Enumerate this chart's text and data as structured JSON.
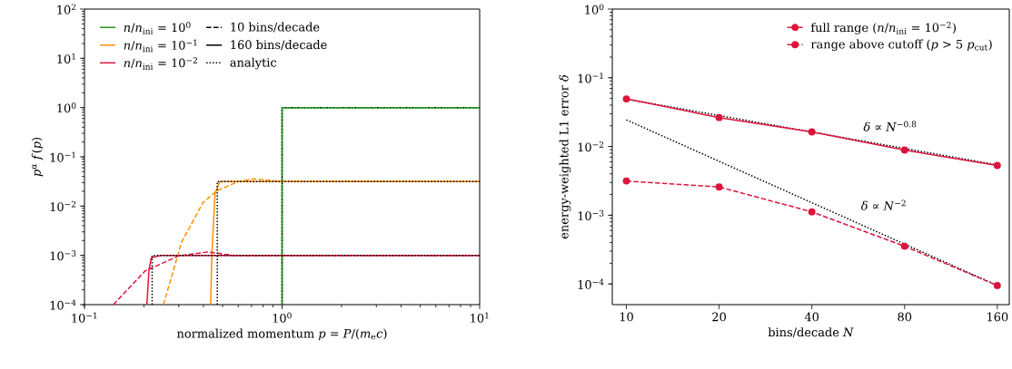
{
  "chart_data": [
    {
      "type": "line",
      "xlabel": "normalized momentum *p* = *P*/(*m*$_{e}$*c*)",
      "ylabel": "*p*$^{α}$ *f*(*p*)",
      "log": "xy",
      "legend": "top left",
      "xlim": [
        0.1,
        10
      ],
      "ylim": [
        0.0001,
        100
      ],
      "xticks": [
        {
          "value": 0.1,
          "label": "10$^{−1}$"
        },
        {
          "value": 1,
          "label": "10$^{0}$"
        },
        {
          "value": 10,
          "label": "10$^{1}$"
        }
      ],
      "yticks": [
        {
          "value": 0.0001,
          "label": "10$^{−4}$"
        },
        {
          "value": 0.001,
          "label": "10$^{−3}$"
        },
        {
          "value": 0.01,
          "label": "10$^{−2}$"
        },
        {
          "value": 0.1,
          "label": "10$^{−1}$"
        },
        {
          "value": 1,
          "label": "10$^{0}$"
        },
        {
          "value": 10,
          "label": "10$^{1}$"
        },
        {
          "value": 100,
          "label": "10$^{2}$"
        }
      ],
      "series": [
        {
          "name": "*n*/*n*$_{ini}$ = 10$^{0}$",
          "color": "#1f9a1f",
          "line_style": "solid",
          "x": [
            1,
            1,
            10
          ],
          "values": [
            0.0001,
            1,
            1
          ]
        },
        {
          "name": "*n*/*n*$_{ini}$ = 10$^{−1}$",
          "color": "#ff9000",
          "line_style": "solid",
          "x": [
            0.435,
            0.441,
            0.458,
            0.484,
            10
          ],
          "values": [
            0.0001,
            0.001,
            0.0178,
            0.0316,
            0.0316
          ]
        },
        {
          "name": "*n*/*n*$_{ini}$ = 10$^{−2}$",
          "color": "#dc143c",
          "line_style": "solid",
          "x": [
            0.207,
            0.212,
            0.218,
            0.243,
            10
          ],
          "values": [
            0.0001,
            0.0005,
            0.0009,
            0.001,
            0.001
          ]
        },
        {
          "name": "10 bins/decade",
          "color": "#000000",
          "line_style": "dashed"
        },
        {
          "name": "160 bins/decade",
          "color": "#000000",
          "line_style": "solid"
        },
        {
          "name": "analytic",
          "color": "#000000",
          "line_style": "dotted",
          "x": [
            1,
            1,
            10
          ],
          "values": [
            0.0001,
            1,
            1
          ]
        },
        {
          "color": "#1f9a1f",
          "line_style": "dashed",
          "x": [
            1,
            1,
            10
          ],
          "values": [
            0.0001,
            1,
            1
          ]
        },
        {
          "color": "#ff9000",
          "line_style": "dashed",
          "x": [
            0.251,
            0.31,
            0.397,
            0.466,
            0.607,
            0.724,
            0.96,
            10
          ],
          "values": [
            0.0001,
            0.00185,
            0.0116,
            0.0204,
            0.032,
            0.0358,
            0.032,
            0.0316
          ]
        },
        {
          "color": "#dc143c",
          "line_style": "dashed",
          "x": [
            0.14,
            0.203,
            0.3,
            0.419,
            0.566,
            10
          ],
          "values": [
            0.0001,
            0.000485,
            0.00098,
            0.00117,
            0.001,
            0.001
          ]
        },
        {
          "color": "#000000",
          "line_style": "dotted",
          "x": [
            0.47,
            0.47,
            10
          ],
          "values": [
            0.0001,
            0.0316,
            0.0316
          ]
        },
        {
          "color": "#000000",
          "line_style": "dotted",
          "x": [
            0.22,
            0.22,
            10
          ],
          "values": [
            0.0001,
            0.001,
            0.001
          ]
        }
      ]
    },
    {
      "type": "line",
      "xlabel": "bins/decade *N*",
      "ylabel": "energy-weighted L1 error *δ*",
      "log": "xy",
      "legend": "top right",
      "xlim": [
        9,
        175
      ],
      "ylim": [
        5e-05,
        1
      ],
      "xticks": [
        10,
        20,
        40,
        80,
        160
      ],
      "yticks": [
        {
          "value": 0.0001,
          "label": "10$^{−4}$"
        },
        {
          "value": 0.001,
          "label": "10$^{−3}$"
        },
        {
          "value": 0.01,
          "label": "10$^{−2}$"
        },
        {
          "value": 0.1,
          "label": "10$^{−1}$"
        },
        {
          "value": 1,
          "label": "10$^{0}$"
        }
      ],
      "series": [
        {
          "color": "#000000",
          "line_style": "dotted",
          "marker": "none",
          "x": [
            10,
            160
          ],
          "values": [
            0.049,
            0.0054
          ]
        },
        {
          "color": "#000000",
          "line_style": "dotted",
          "marker": "none",
          "x": [
            10,
            160
          ],
          "values": [
            0.0244,
            9.5e-05
          ]
        },
        {
          "name": "full range (*n*/*n*$_{ini}$ = 10$^{−2}$)",
          "color": "#dc143c",
          "line_style": "solid",
          "marker": "circle",
          "x": [
            10,
            20,
            40,
            80,
            160
          ],
          "values": [
            0.0493,
            0.0264,
            0.0163,
            0.00887,
            0.00531
          ]
        },
        {
          "name": "range above cutoff (*p* > 5 *p*$_{cut}$)",
          "color": "#dc143c",
          "line_style": "dashed",
          "marker": "circle",
          "x": [
            10,
            20,
            40,
            80,
            160
          ],
          "values": [
            0.00315,
            0.00258,
            0.00112,
            0.000354,
            9.5e-05
          ]
        }
      ],
      "annotations": [
        "*δ* ∝ *N*$^{−0.8}$",
        "*δ* ∝ *N*$^{−2}$"
      ]
    }
  ]
}
